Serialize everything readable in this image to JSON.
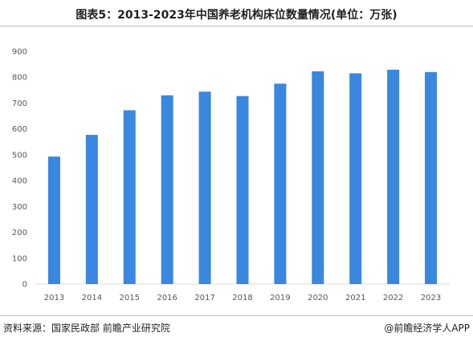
{
  "chart_data": {
    "type": "bar",
    "title": "图表5：2013-2023年中国养老机构床位数量情况(单位：万张)",
    "xlabel": "",
    "ylabel": "",
    "categories": [
      "2013",
      "2014",
      "2015",
      "2016",
      "2017",
      "2018",
      "2019",
      "2020",
      "2021",
      "2022",
      "2023"
    ],
    "values": [
      493,
      577,
      672,
      730,
      744,
      727,
      775,
      823,
      815,
      829,
      820
    ],
    "ylim": [
      0,
      900
    ],
    "yticks": [
      0,
      100,
      200,
      300,
      400,
      500,
      600,
      700,
      800,
      900
    ],
    "grid": false,
    "legend": "none",
    "bar_color": "#3a87e0"
  },
  "footer": {
    "source": "资料来源：国家民政部 前瞻产业研究院",
    "credit": "@前瞻经济学人APP"
  }
}
